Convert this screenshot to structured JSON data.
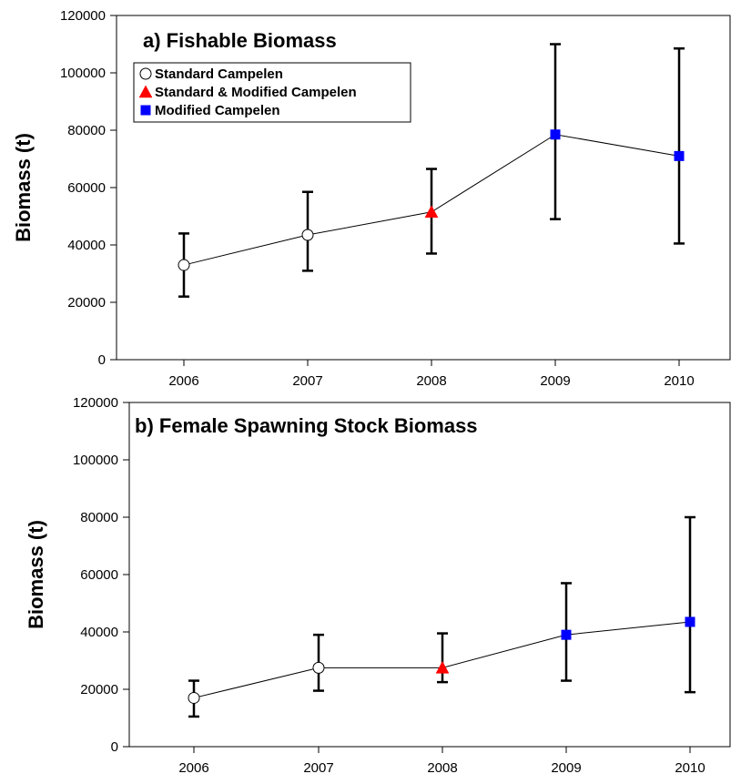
{
  "chart_data": [
    {
      "type": "line",
      "title": "a) Fishable Biomass",
      "xlabel": "",
      "ylabel": "Biomass (t)",
      "categories": [
        "2006",
        "2007",
        "2008",
        "2009",
        "2010"
      ],
      "ylim": [
        0,
        120000
      ],
      "yticks": [
        0,
        20000,
        40000,
        60000,
        80000,
        100000,
        120000
      ],
      "ytick_labels": [
        "0",
        "20000",
        "40000",
        "60000",
        "80000",
        "100000",
        "120000"
      ],
      "legend": {
        "placement": "top-left",
        "entries": [
          {
            "label": "Standard Campelen",
            "marker": "circle-open"
          },
          {
            "label": "Standard & Modified Campelen",
            "marker": "triangle",
            "color": "#ff0000"
          },
          {
            "label": "Modified Campelen",
            "marker": "square",
            "color": "#0000ff"
          }
        ]
      },
      "series": [
        {
          "name": "Standard Campelen",
          "marker": "circle-open",
          "color": "#ffffff",
          "points": [
            {
              "x": "2006",
              "y": 33000,
              "lower": 22000,
              "upper": 44000
            },
            {
              "x": "2007",
              "y": 43500,
              "lower": 31000,
              "upper": 58500
            }
          ]
        },
        {
          "name": "Standard & Modified Campelen",
          "marker": "triangle",
          "color": "#ff0000",
          "points": [
            {
              "x": "2008",
              "y": 51500,
              "lower": 37000,
              "upper": 66500
            }
          ]
        },
        {
          "name": "Modified Campelen",
          "marker": "square",
          "color": "#0000ff",
          "points": [
            {
              "x": "2009",
              "y": 78500,
              "lower": 49000,
              "upper": 110000
            },
            {
              "x": "2010",
              "y": 71000,
              "lower": 40500,
              "upper": 108500
            }
          ]
        }
      ]
    },
    {
      "type": "line",
      "title": "b) Female Spawning Stock Biomass",
      "xlabel": "",
      "ylabel": "Biomass (t)",
      "categories": [
        "2006",
        "2007",
        "2008",
        "2009",
        "2010"
      ],
      "ylim": [
        0,
        120000
      ],
      "yticks": [
        0,
        20000,
        40000,
        60000,
        80000,
        100000,
        120000
      ],
      "ytick_labels": [
        "0",
        "20000",
        "40000",
        "60000",
        "80000",
        "100000",
        "120000"
      ],
      "series": [
        {
          "name": "Standard Campelen",
          "marker": "circle-open",
          "color": "#ffffff",
          "points": [
            {
              "x": "2006",
              "y": 17000,
              "lower": 10500,
              "upper": 23000
            },
            {
              "x": "2007",
              "y": 27500,
              "lower": 19500,
              "upper": 39000
            }
          ]
        },
        {
          "name": "Standard & Modified Campelen",
          "marker": "triangle",
          "color": "#ff0000",
          "points": [
            {
              "x": "2008",
              "y": 27500,
              "lower": 22500,
              "upper": 39500
            }
          ]
        },
        {
          "name": "Modified Campelen",
          "marker": "square",
          "color": "#0000ff",
          "points": [
            {
              "x": "2009",
              "y": 39000,
              "lower": 23000,
              "upper": 57000
            },
            {
              "x": "2010",
              "y": 43500,
              "lower": 19000,
              "upper": 80000
            }
          ]
        }
      ]
    }
  ]
}
